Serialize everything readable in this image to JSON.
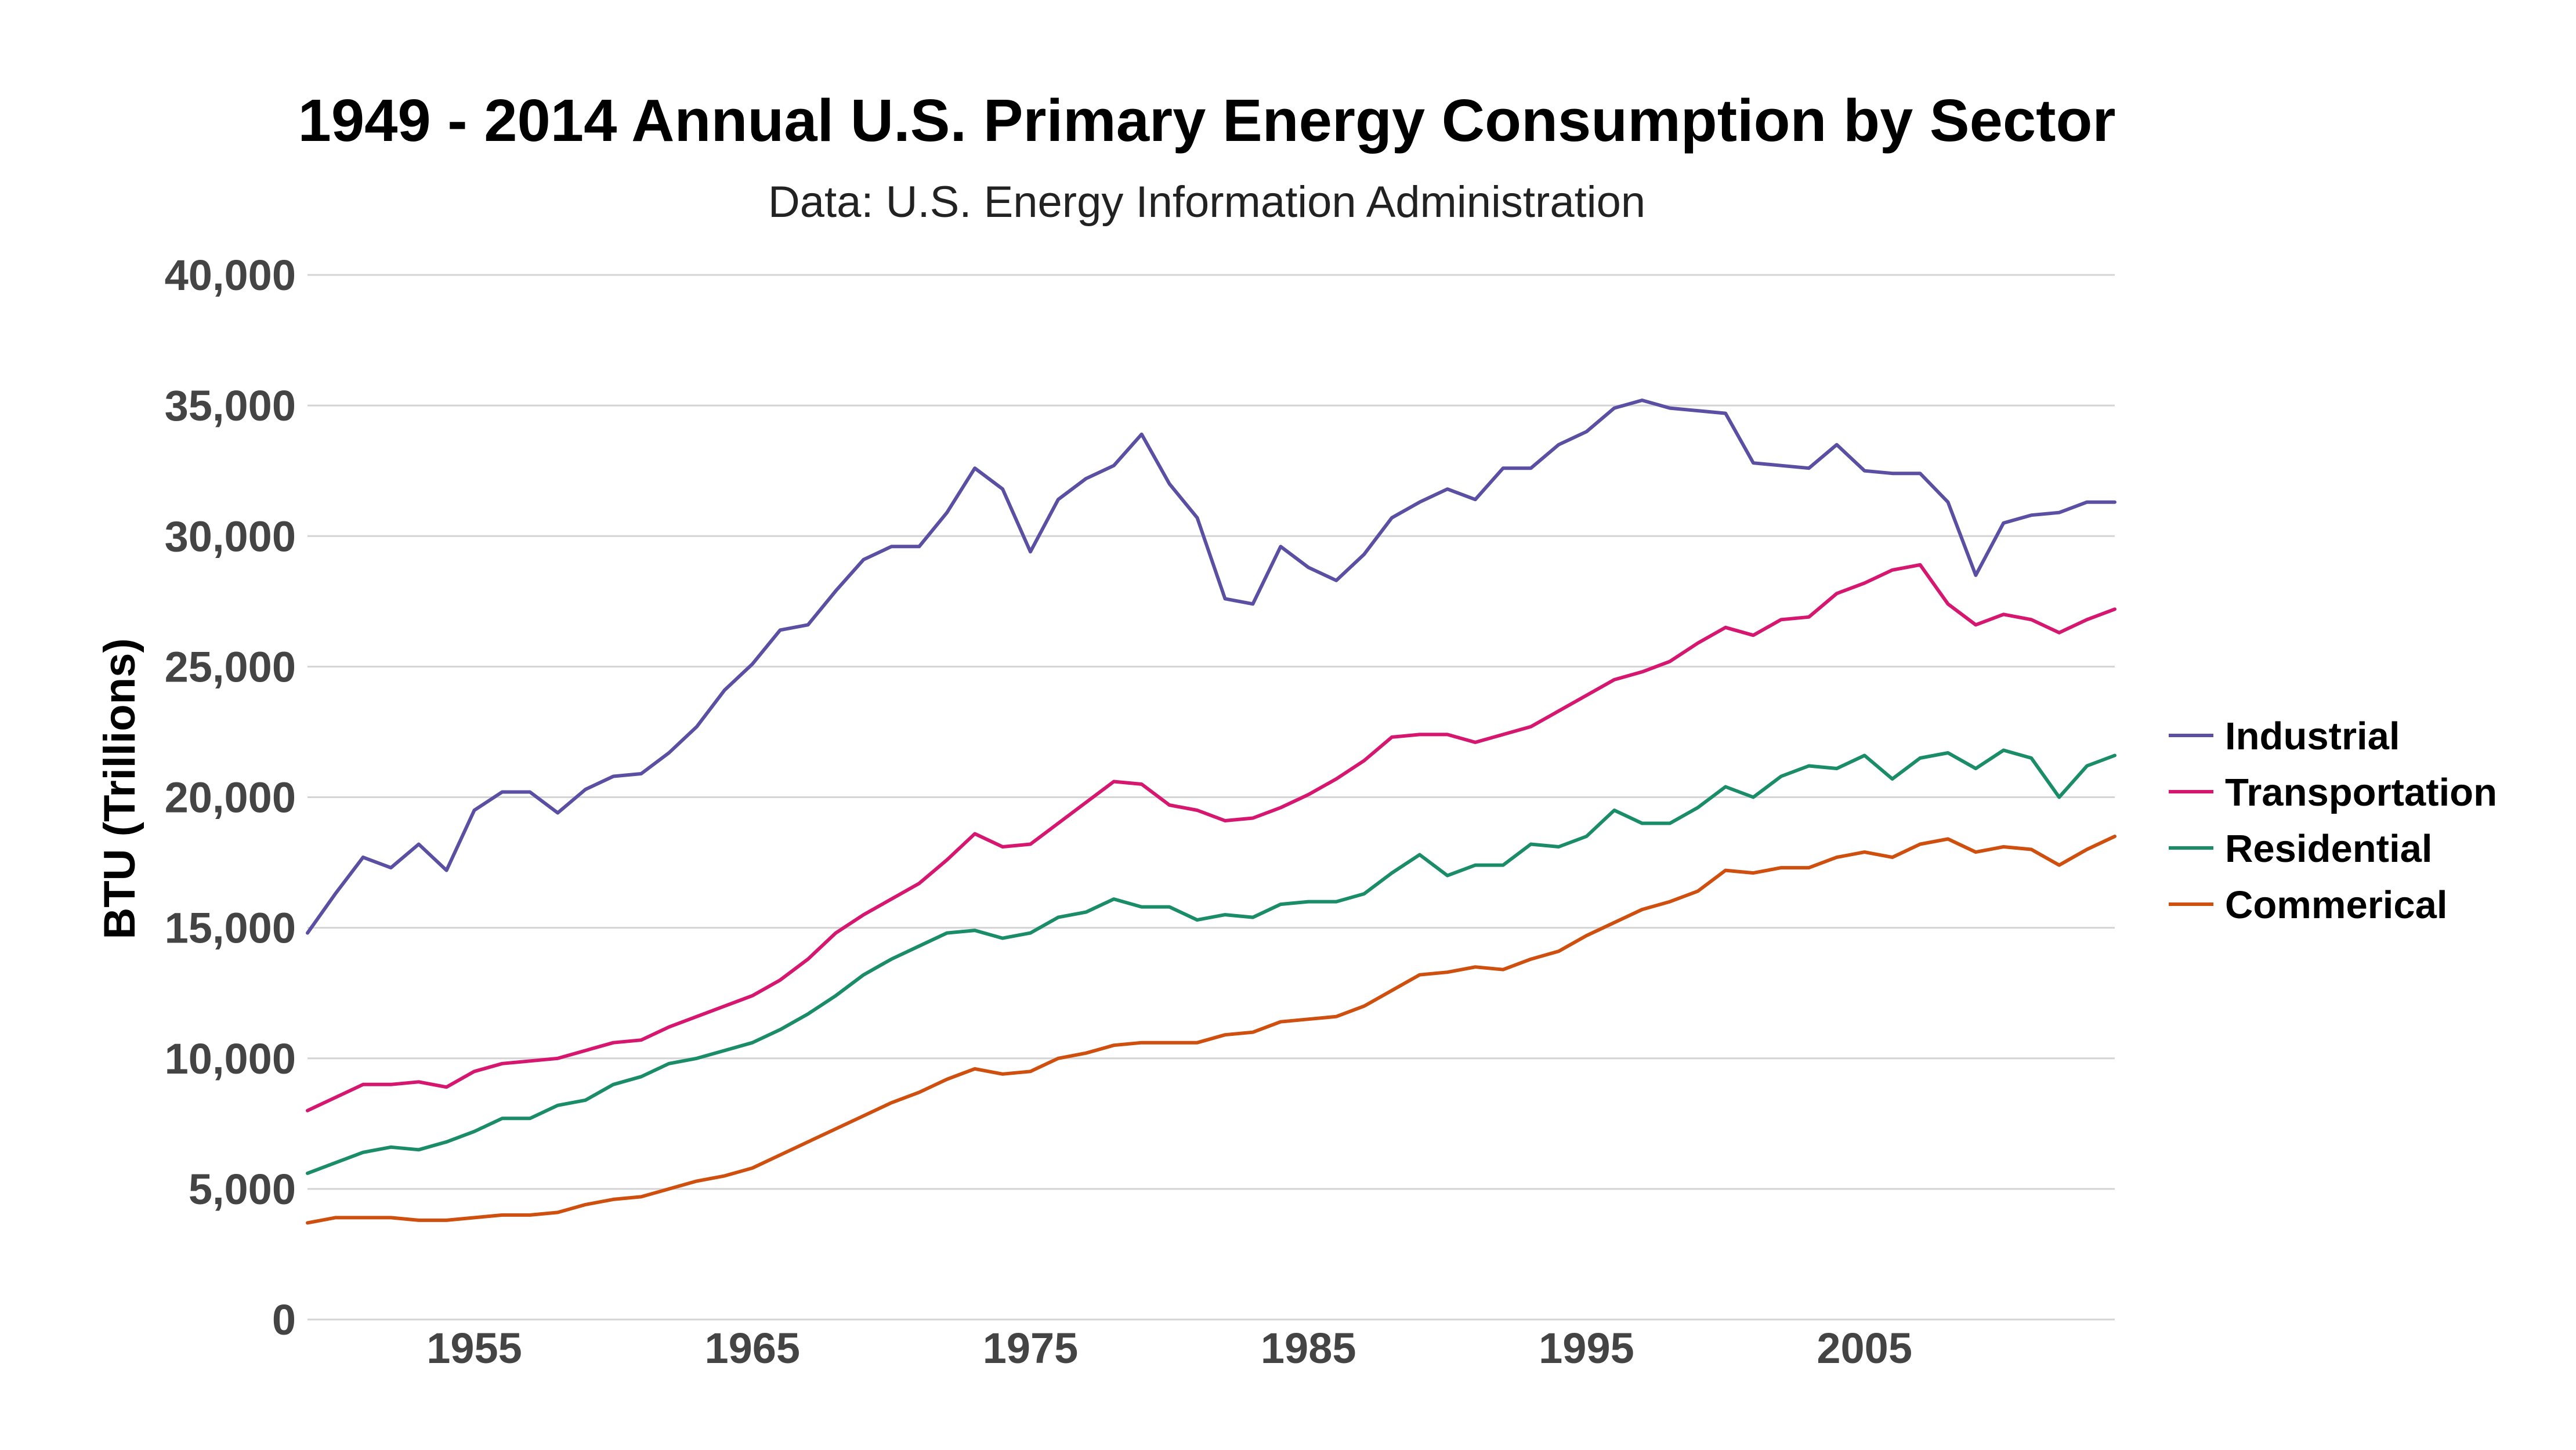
{
  "chart_data": {
    "type": "line",
    "title": "1949 - 2014 Annual U.S. Primary Energy Consumption by Sector",
    "subtitle": "Data: U.S. Energy Information Administration",
    "xlabel": "",
    "ylabel": "BTU (Trillions)",
    "xlim": [
      1949,
      2014
    ],
    "ylim": [
      0,
      40000
    ],
    "y_ticks": [
      0,
      5000,
      10000,
      15000,
      20000,
      25000,
      30000,
      35000,
      40000
    ],
    "y_tick_labels": [
      "0",
      "5,000",
      "10,000",
      "15,000",
      "20,000",
      "25,000",
      "30,000",
      "35,000",
      "40,000"
    ],
    "x_ticks": [
      1955,
      1965,
      1975,
      1985,
      1995,
      2005
    ],
    "x_tick_labels": [
      "1955",
      "1965",
      "1975",
      "1985",
      "1995",
      "2005"
    ],
    "grid": true,
    "legend_position": "right",
    "x": [
      1949,
      1950,
      1951,
      1952,
      1953,
      1954,
      1955,
      1956,
      1957,
      1958,
      1959,
      1960,
      1961,
      1962,
      1963,
      1964,
      1965,
      1966,
      1967,
      1968,
      1969,
      1970,
      1971,
      1972,
      1973,
      1974,
      1975,
      1976,
      1977,
      1978,
      1979,
      1980,
      1981,
      1982,
      1983,
      1984,
      1985,
      1986,
      1987,
      1988,
      1989,
      1990,
      1991,
      1992,
      1993,
      1994,
      1995,
      1996,
      1997,
      1998,
      1999,
      2000,
      2001,
      2002,
      2003,
      2004,
      2005,
      2006,
      2007,
      2008,
      2009,
      2010,
      2011,
      2012,
      2013,
      2014
    ],
    "series": [
      {
        "name": "Industrial",
        "color": "#5b4fa3",
        "values": [
          14800,
          16300,
          17700,
          17300,
          18200,
          17200,
          19500,
          20200,
          20200,
          19400,
          20300,
          20800,
          20900,
          21700,
          22700,
          24100,
          25100,
          26400,
          26600,
          27900,
          29100,
          29600,
          29600,
          30900,
          32600,
          31800,
          29400,
          31400,
          32200,
          32700,
          33900,
          32000,
          30700,
          27600,
          27400,
          29600,
          28800,
          28300,
          29300,
          30700,
          31300,
          31800,
          31400,
          32600,
          32600,
          33500,
          34000,
          34900,
          35200,
          34900,
          34800,
          34700,
          32800,
          32700,
          32600,
          33500,
          32500,
          32400,
          32400,
          31300,
          28500,
          30500,
          30800,
          30900,
          31300,
          31300
        ]
      },
      {
        "name": "Transportation",
        "color": "#d6176f",
        "values": [
          8000,
          8500,
          9000,
          9000,
          9100,
          8900,
          9500,
          9800,
          9900,
          10000,
          10300,
          10600,
          10700,
          11200,
          11600,
          12000,
          12400,
          13000,
          13800,
          14800,
          15500,
          16100,
          16700,
          17600,
          18600,
          18100,
          18200,
          19000,
          19800,
          20600,
          20500,
          19700,
          19500,
          19100,
          19200,
          19600,
          20100,
          20700,
          21400,
          22300,
          22400,
          22400,
          22100,
          22400,
          22700,
          23300,
          23900,
          24500,
          24800,
          25200,
          25900,
          26500,
          26200,
          26800,
          26900,
          27800,
          28200,
          28700,
          28900,
          27400,
          26600,
          27000,
          26800,
          26300,
          26800,
          27200
        ]
      },
      {
        "name": "Residential",
        "color": "#1a8c68",
        "values": [
          5600,
          6000,
          6400,
          6600,
          6500,
          6800,
          7200,
          7700,
          7700,
          8200,
          8400,
          9000,
          9300,
          9800,
          10000,
          10300,
          10600,
          11100,
          11700,
          12400,
          13200,
          13800,
          14300,
          14800,
          14900,
          14600,
          14800,
          15400,
          15600,
          16100,
          15800,
          15800,
          15300,
          15500,
          15400,
          15900,
          16000,
          16000,
          16300,
          17100,
          17800,
          17000,
          17400,
          17400,
          18200,
          18100,
          18500,
          19500,
          19000,
          19000,
          19600,
          20400,
          20000,
          20800,
          21200,
          21100,
          21600,
          20700,
          21500,
          21700,
          21100,
          21800,
          21500,
          20000,
          21200,
          21600
        ]
      },
      {
        "name": "Commerical",
        "color": "#cf4f0f",
        "values": [
          3700,
          3900,
          3900,
          3900,
          3800,
          3800,
          3900,
          4000,
          4000,
          4100,
          4400,
          4600,
          4700,
          5000,
          5300,
          5500,
          5800,
          6300,
          6800,
          7300,
          7800,
          8300,
          8700,
          9200,
          9600,
          9400,
          9500,
          10000,
          10200,
          10500,
          10600,
          10600,
          10600,
          10900,
          11000,
          11400,
          11500,
          11600,
          12000,
          12600,
          13200,
          13300,
          13500,
          13400,
          13800,
          14100,
          14700,
          15200,
          15700,
          16000,
          16400,
          17200,
          17100,
          17300,
          17300,
          17700,
          17900,
          17700,
          18200,
          18400,
          17900,
          18100,
          18000,
          17400,
          18000,
          18500
        ]
      }
    ]
  }
}
